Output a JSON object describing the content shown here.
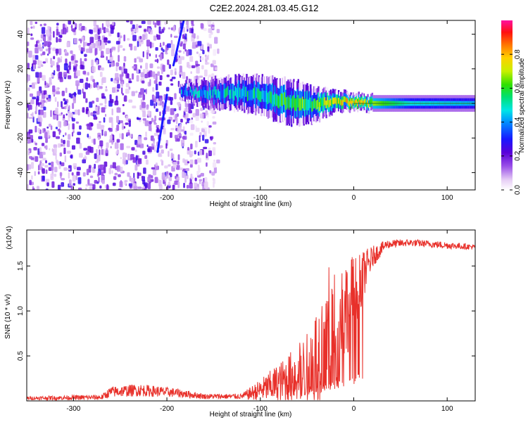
{
  "title": "C2E2.2024.281.03.45.G12",
  "chart_data": [
    {
      "type": "heatmap",
      "xlabel": "Height of straight line (km)",
      "ylabel": "Frequency (Hz)",
      "xlim": [
        -350,
        130
      ],
      "ylim": [
        -50,
        48
      ],
      "x_ticks": [
        -300,
        -200,
        -100,
        0,
        100
      ],
      "x_tick_labels": [
        "-300",
        "-200",
        "-100",
        "0",
        "100"
      ],
      "y_ticks": [
        -40,
        -20,
        0,
        20,
        40
      ],
      "y_tick_labels": [
        "-40",
        "-20",
        "0",
        "20",
        "40"
      ],
      "colorbar": {
        "label": "Normalized spectral amplitude",
        "range": [
          0,
          1
        ],
        "ticks": [
          0.0,
          0.2,
          0.4,
          0.6,
          0.8
        ],
        "tick_labels": [
          "0.0",
          "0.2",
          "0.4",
          "0.6",
          "0.8"
        ]
      },
      "noise_region": {
        "x_range": [
          -350,
          -145
        ],
        "f_range": [
          -50,
          48
        ]
      },
      "signal_band": [
        {
          "x": -185,
          "f": 7,
          "halfwidth": 3,
          "amp": 0.45
        },
        {
          "x": -160,
          "f": 6,
          "halfwidth": 5,
          "amp": 0.5
        },
        {
          "x": -130,
          "f": 6,
          "halfwidth": 6,
          "amp": 0.55
        },
        {
          "x": -100,
          "f": 5,
          "halfwidth": 7,
          "amp": 0.55
        },
        {
          "x": -80,
          "f": 2,
          "halfwidth": 8,
          "amp": 0.6
        },
        {
          "x": -60,
          "f": 0,
          "halfwidth": 8,
          "amp": 0.65
        },
        {
          "x": -40,
          "f": -1,
          "halfwidth": 6,
          "amp": 0.7
        },
        {
          "x": -20,
          "f": 1,
          "halfwidth": 4,
          "amp": 0.85
        },
        {
          "x": 0,
          "f": 1,
          "halfwidth": 3,
          "amp": 0.9
        },
        {
          "x": 20,
          "f": 0,
          "halfwidth": 3,
          "amp": 0.8
        },
        {
          "x": 60,
          "f": 0,
          "halfwidth": 3,
          "amp": 0.55
        },
        {
          "x": 130,
          "f": 0,
          "halfwidth": 3,
          "amp": 0.5
        }
      ],
      "streaks": [
        {
          "x0": -210,
          "f0": -28,
          "x1": -200,
          "f1": 5
        },
        {
          "x0": -193,
          "f0": 22,
          "x1": -182,
          "f1": 48
        }
      ]
    },
    {
      "type": "line",
      "xlabel": "Height of straight line (km)",
      "ylabel": "SNR (10 * v/v)",
      "multiplier_label": "(x10^4)",
      "xlim": [
        -350,
        130
      ],
      "ylim": [
        0,
        1.9
      ],
      "x_ticks": [
        -300,
        -200,
        -100,
        0,
        100
      ],
      "x_tick_labels": [
        "-300",
        "-200",
        "-100",
        "0",
        "100"
      ],
      "y_ticks": [
        0.5,
        1.0,
        1.5
      ],
      "y_tick_labels": [
        "0.5",
        "1.0",
        "1.5"
      ],
      "color": "#e8302a",
      "envelope": [
        {
          "x": -350,
          "base": 0.03,
          "noise": 0.02
        },
        {
          "x": -270,
          "base": 0.04,
          "noise": 0.03
        },
        {
          "x": -260,
          "base": 0.1,
          "noise": 0.06
        },
        {
          "x": -230,
          "base": 0.12,
          "noise": 0.07
        },
        {
          "x": -190,
          "base": 0.09,
          "noise": 0.05
        },
        {
          "x": -160,
          "base": 0.05,
          "noise": 0.03
        },
        {
          "x": -120,
          "base": 0.05,
          "noise": 0.03
        },
        {
          "x": -100,
          "base": 0.12,
          "noise": 0.12
        },
        {
          "x": -75,
          "base": 0.22,
          "noise": 0.25
        },
        {
          "x": -50,
          "base": 0.35,
          "noise": 0.4
        },
        {
          "x": -35,
          "base": 0.6,
          "noise": 0.6
        },
        {
          "x": -25,
          "base": 0.8,
          "noise": 0.75
        },
        {
          "x": -10,
          "base": 1.0,
          "noise": 0.6
        },
        {
          "x": 5,
          "base": 1.3,
          "noise": 0.35
        },
        {
          "x": 20,
          "base": 1.6,
          "noise": 0.12
        },
        {
          "x": 35,
          "base": 1.74,
          "noise": 0.05
        },
        {
          "x": 60,
          "base": 1.76,
          "noise": 0.04
        },
        {
          "x": 100,
          "base": 1.73,
          "noise": 0.04
        },
        {
          "x": 130,
          "base": 1.71,
          "noise": 0.03
        }
      ]
    }
  ]
}
